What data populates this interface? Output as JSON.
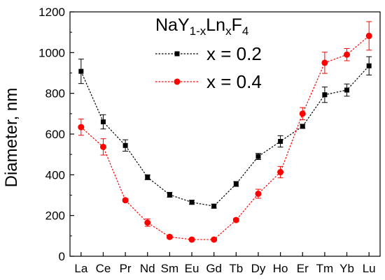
{
  "chart_data": {
    "type": "line",
    "title": "",
    "legend_title": {
      "base": "NaY",
      "sub1": "1-x",
      "mid": "Ln",
      "sub2": "x",
      "end": "F",
      "sub3": "4"
    },
    "legend_placement": "top-center",
    "xlabel": "",
    "ylabel": "Diameter, nm",
    "ylim": [
      0,
      1200
    ],
    "yticks": [
      0,
      200,
      400,
      600,
      800,
      1000,
      1200
    ],
    "ytick_labels": [
      "0",
      "200",
      "400",
      "600",
      "800",
      "1000",
      "1200"
    ],
    "categories": [
      "La",
      "Ce",
      "Pr",
      "Nd",
      "Sm",
      "Eu",
      "Gd",
      "Tb",
      "Dy",
      "Ho",
      "Er",
      "Tm",
      "Yb",
      "Lu"
    ],
    "grid": false,
    "series": [
      {
        "name": "x = 0.2",
        "color": "#000000",
        "marker": "square",
        "values": [
          908,
          660,
          544,
          388,
          302,
          265,
          246,
          355,
          490,
          564,
          638,
          793,
          816,
          935
        ],
        "errors": [
          60,
          35,
          28,
          12,
          12,
          10,
          10,
          12,
          15,
          28,
          10,
          38,
          30,
          45
        ]
      },
      {
        "name": "x = 0.4",
        "color": "#ff0000",
        "marker": "circle",
        "values": [
          634,
          537,
          275,
          165,
          95,
          82,
          82,
          178,
          307,
          413,
          700,
          950,
          990,
          1082
        ],
        "errors": [
          40,
          40,
          8,
          18,
          8,
          6,
          6,
          8,
          22,
          28,
          30,
          52,
          30,
          70
        ]
      }
    ]
  }
}
